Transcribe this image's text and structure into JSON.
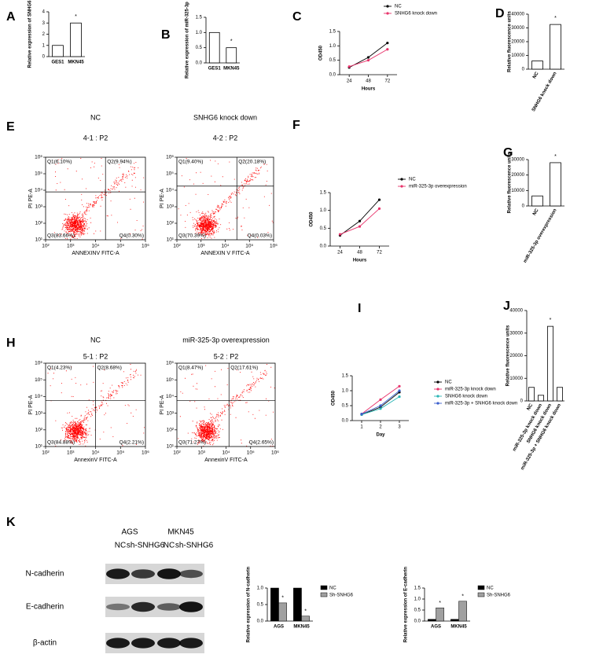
{
  "chart_data": [
    {
      "panel": "A",
      "type": "bar",
      "y_label": "Relative expression of SNHG6",
      "categories": [
        "GES1",
        "MKN45"
      ],
      "values": [
        1.0,
        3.0
      ],
      "significance": [
        null,
        "*"
      ],
      "color": "#ffffff",
      "ylim": [
        0,
        4
      ],
      "yticks": [
        0,
        1,
        2,
        3,
        4
      ]
    },
    {
      "panel": "B",
      "type": "bar",
      "y_label": "Relative expression of miR-325-3p",
      "categories": [
        "GES1",
        "MKN45"
      ],
      "values": [
        1.0,
        0.5
      ],
      "significance": [
        null,
        "*"
      ],
      "color": "#ffffff",
      "ylim": [
        0,
        1.5
      ],
      "yticks": [
        {
          "value": 0,
          "label": "0.0"
        },
        0.5,
        {
          "value": 1,
          "label": "1.0"
        },
        1.5
      ]
    },
    {
      "panel": "C",
      "type": "line",
      "x_label": "Hours",
      "y_label": "OD450",
      "categories": [
        "24",
        "48",
        "72"
      ],
      "series": [
        {
          "name": "NC",
          "color": "#000000",
          "values": [
            0.25,
            0.6,
            1.1
          ]
        },
        {
          "name": "SNHG6 knock down",
          "color": "#e8336b",
          "values": [
            0.28,
            0.5,
            0.88
          ]
        }
      ],
      "ylim": [
        0,
        1.5
      ],
      "yticks": [
        {
          "value": 0,
          "label": "0.0"
        },
        0.5,
        {
          "value": 1,
          "label": "1.0"
        },
        1.5
      ]
    },
    {
      "panel": "D",
      "type": "bar",
      "y_label": "Relative fluorescence units",
      "categories": [
        "NC",
        "SNHG6 knock down"
      ],
      "values": [
        6000,
        32500
      ],
      "significance": [
        null,
        "*"
      ],
      "color": "#ffffff",
      "ylim": [
        0,
        40000
      ],
      "yticks": [
        0,
        10000,
        20000,
        30000,
        40000
      ]
    },
    {
      "panel": "E",
      "type": "flow",
      "title": "NC",
      "subtitle": "4-1 : P2",
      "x_label": "ANNEXINV FITC-A",
      "y_label": "PI PE-A",
      "quadrants": [
        "Q1(6.10%)",
        "Q2(9.94%)",
        "Q3(83.66%)",
        "Q4(0.30%)"
      ],
      "color": "#ff0000",
      "log_scale": true,
      "xlim": [
        100,
        1000000
      ],
      "xticks": [
        {
          "value": 100,
          "label": "10²"
        },
        {
          "value": 1000,
          "label": "10³"
        },
        {
          "value": 10000,
          "label": "10⁴"
        },
        {
          "value": 100000,
          "label": "10⁵"
        },
        {
          "value": 1000000,
          "label": "10⁶"
        }
      ],
      "ylim": [
        10,
        1000000
      ],
      "yticks": [
        {
          "value": 10,
          "label": "10¹"
        },
        {
          "value": 100,
          "label": "10²"
        },
        {
          "value": 1000,
          "label": "10³"
        },
        {
          "value": 10000,
          "label": "10⁴"
        },
        {
          "value": 100000,
          "label": "10⁵"
        },
        {
          "value": 1000000,
          "label": "10⁶"
        }
      ]
    },
    {
      "type": "flow",
      "title": "SNHG6 knock down",
      "subtitle": "4-2 : P2",
      "x_label": "ANNEXIN V FITC-A",
      "y_label": "PI PE-A",
      "quadrants": [
        "Q1(9.40%)",
        "Q2(20.18%)",
        "Q3(70.39%)",
        "Q4(0.03%)"
      ],
      "color": "#ff0000",
      "log_scale": true,
      "xlim": [
        100,
        1000000
      ],
      "xticks": [
        {
          "value": 100,
          "label": "10²"
        },
        {
          "value": 1000,
          "label": "10³"
        },
        {
          "value": 10000,
          "label": "10⁴"
        },
        {
          "value": 100000,
          "label": "10⁵"
        },
        {
          "value": 1000000,
          "label": "10⁶"
        }
      ],
      "ylim": [
        10,
        1000000
      ],
      "yticks": [
        {
          "value": 10,
          "label": "10¹"
        },
        {
          "value": 100,
          "label": "10²"
        },
        {
          "value": 1000,
          "label": "10³"
        },
        {
          "value": 10000,
          "label": "10⁴"
        },
        {
          "value": 100000,
          "label": "10⁵"
        },
        {
          "value": 1000000,
          "label": "10⁶"
        }
      ]
    },
    {
      "panel": "F",
      "type": "line",
      "x_label": "Hours",
      "y_label": "OD450",
      "categories": [
        "24",
        "48",
        "72"
      ],
      "series": [
        {
          "name": "NC",
          "color": "#000000",
          "values": [
            0.3,
            0.7,
            1.3
          ]
        },
        {
          "name": "miR-325-3p overexpression",
          "color": "#e8336b",
          "values": [
            0.33,
            0.55,
            1.05
          ]
        }
      ],
      "ylim": [
        0,
        1.5
      ],
      "yticks": [
        {
          "value": 0,
          "label": "0.0"
        },
        0.5,
        {
          "value": 1,
          "label": "1.0"
        },
        1.5
      ]
    },
    {
      "panel": "G",
      "type": "bar",
      "y_label": "Relative fluorescence units",
      "categories": [
        "NC",
        "miR-325-3p overexpression"
      ],
      "values": [
        6500,
        28000
      ],
      "significance": [
        null,
        "*"
      ],
      "color": "#ffffff",
      "ylim": [
        0,
        30000
      ],
      "yticks": [
        0,
        10000,
        20000,
        30000
      ]
    },
    {
      "panel": "H",
      "type": "flow",
      "title": "NC",
      "subtitle": "5-1 : P2",
      "x_label": "AnnexinV FITC-A",
      "y_label": "PI PE-A",
      "quadrants": [
        "Q1(4.23%)",
        "Q2(8.68%)",
        "Q3(84.88%)",
        "Q4(2.21%)"
      ],
      "color": "#ff0000",
      "log_scale": true,
      "xlim": [
        100,
        1000000
      ],
      "xticks": [
        {
          "value": 100,
          "label": "10²"
        },
        {
          "value": 1000,
          "label": "10³"
        },
        {
          "value": 10000,
          "label": "10⁴"
        },
        {
          "value": 100000,
          "label": "10⁵"
        },
        {
          "value": 1000000,
          "label": "10⁶"
        }
      ],
      "ylim": [
        10,
        1000000
      ],
      "yticks": [
        {
          "value": 10,
          "label": "10¹"
        },
        {
          "value": 100,
          "label": "10²"
        },
        {
          "value": 1000,
          "label": "10³"
        },
        {
          "value": 10000,
          "label": "10⁴"
        },
        {
          "value": 100000,
          "label": "10⁵"
        },
        {
          "value": 1000000,
          "label": "10⁶"
        }
      ]
    },
    {
      "type": "flow",
      "title": "miR-325-3p overexpression",
      "subtitle": "5-2 : P2",
      "x_label": "AnnexinV FITC-A",
      "y_label": "PI PE-A",
      "quadrants": [
        "Q1(8.47%)",
        "Q2(17.61%)",
        "Q3(71.27%)",
        "Q4(2.65%)"
      ],
      "color": "#ff0000",
      "log_scale": true,
      "xlim": [
        100,
        1000000
      ],
      "xticks": [
        {
          "value": 100,
          "label": "10²"
        },
        {
          "value": 1000,
          "label": "10³"
        },
        {
          "value": 10000,
          "label": "10⁴"
        },
        {
          "value": 100000,
          "label": "10⁵"
        },
        {
          "value": 1000000,
          "label": "10⁶"
        }
      ],
      "ylim": [
        10,
        1000000
      ],
      "yticks": [
        {
          "value": 10,
          "label": "10¹"
        },
        {
          "value": 100,
          "label": "10²"
        },
        {
          "value": 1000,
          "label": "10³"
        },
        {
          "value": 10000,
          "label": "10⁴"
        },
        {
          "value": 100000,
          "label": "10⁵"
        },
        {
          "value": 1000000,
          "label": "10⁶"
        }
      ]
    },
    {
      "panel": "I",
      "type": "line",
      "x_label": "Day",
      "y_label": "OD450",
      "categories": [
        "1",
        "2",
        "3"
      ],
      "series": [
        {
          "name": "NC",
          "color": "#000000",
          "values": [
            0.2,
            0.45,
            0.95
          ]
        },
        {
          "name": "miR-325-3p knock down",
          "color": "#e8336b",
          "values": [
            0.22,
            0.7,
            1.15
          ]
        },
        {
          "name": "SNHG6 knock down",
          "color": "#2bb5b5",
          "values": [
            0.2,
            0.4,
            0.8
          ]
        },
        {
          "name": "miR-325-3p + SNHG6 knock down",
          "color": "#3a5fcd",
          "values": [
            0.22,
            0.5,
            1.0
          ]
        }
      ],
      "ylim": [
        0,
        1.5
      ],
      "yticks": [
        {
          "value": 0,
          "label": "0.0"
        },
        0.5,
        {
          "value": 1,
          "label": "1.0"
        },
        1.5
      ]
    },
    {
      "panel": "J",
      "type": "bar",
      "y_label": "Relative fluorescence units",
      "categories": [
        "NC",
        "miR-325-3p knock down",
        "SNHG6 knock down",
        "miR-325-3p + SNHG6 knock down"
      ],
      "values": [
        6000,
        2500,
        33000,
        6000
      ],
      "significance": [
        null,
        null,
        "*",
        null
      ],
      "color": "#ffffff",
      "ylim": [
        0,
        40000
      ],
      "yticks": [
        0,
        10000,
        20000,
        30000,
        40000
      ]
    },
    {
      "panel": "K",
      "type": "blot",
      "groups": [
        "AGS",
        "MKN45"
      ],
      "lanes": [
        "NC",
        "sh-SNHG6",
        "NC",
        "sh-SNHG6"
      ],
      "proteins": [
        "N-cadherin",
        "E-cadherin",
        "β-actin"
      ]
    },
    {
      "type": "grouped_bar",
      "y_label": "Relative expression of N-cadherin",
      "categories": [
        "AGS",
        "MKN45"
      ],
      "series": [
        {
          "name": "NC",
          "color": "#000000",
          "values": [
            1.0,
            1.0
          ]
        },
        {
          "name": "Sh-SNHG6",
          "color": "#a0a0a0",
          "values": [
            0.55,
            0.15
          ],
          "significance": [
            "*",
            "*"
          ]
        }
      ],
      "ylim": [
        0,
        1
      ],
      "yticks": [
        {
          "value": 0,
          "label": "0.0"
        },
        0.5,
        {
          "value": 1,
          "label": "1.0"
        }
      ]
    },
    {
      "type": "grouped_bar",
      "y_label": "Relative expression of E-cadherin",
      "categories": [
        "AGS",
        "MKN45"
      ],
      "series": [
        {
          "name": "NC",
          "color": "#000000",
          "values": [
            0.08,
            0.08
          ]
        },
        {
          "name": "Sh-SNHG6",
          "color": "#a0a0a0",
          "values": [
            0.6,
            0.9
          ],
          "significance": [
            "*",
            "*"
          ]
        }
      ],
      "ylim": [
        0,
        1.5
      ],
      "yticks": [
        {
          "value": 0,
          "label": "0.0"
        },
        0.5,
        {
          "value": 1,
          "label": "1.0"
        },
        1.5
      ]
    }
  ]
}
